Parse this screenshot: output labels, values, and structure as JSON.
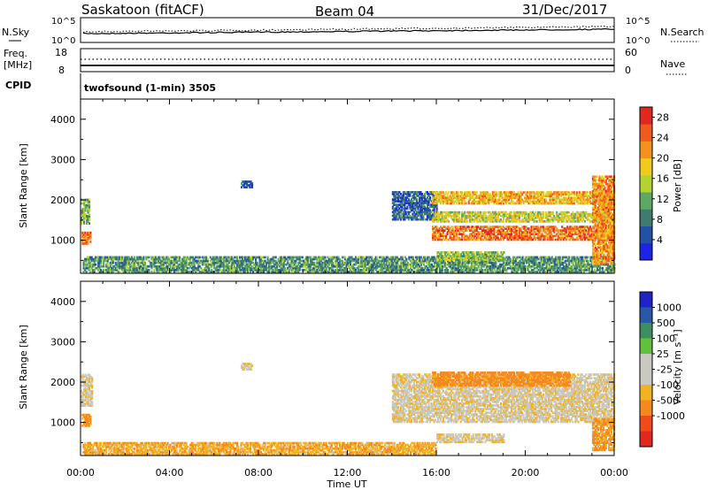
{
  "header": {
    "title": "Saskatoon (fitACF)",
    "beam": "Beam 04",
    "date": "31/Dec/2017"
  },
  "noise_panel": {
    "left_label": "N.Sky",
    "right_label": "N.Search",
    "left_ticks": [
      "10^5",
      "10^0"
    ],
    "right_ticks": [
      "10^5",
      "10^0"
    ]
  },
  "freq_panel": {
    "left_label_line1": "Freq.",
    "left_label_line2": "[MHz]",
    "right_label": "Nave",
    "left_ticks": [
      "18",
      "8"
    ],
    "right_ticks": [
      "60",
      "0"
    ]
  },
  "cpid": {
    "label": "CPID",
    "value": "twofsound (1-min) 3505"
  },
  "colors": {
    "power_scale": [
      "#1e24e6",
      "#2351a4",
      "#3f7b6e",
      "#5fa863",
      "#b3d42f",
      "#f2ca1e",
      "#f5921e",
      "#f15a1c",
      "#e0281f"
    ],
    "velocity_scale": [
      "#e0281f",
      "#f24a1a",
      "#f5891e",
      "#f2b323",
      "#c9c9c0",
      "#c9c9c0",
      "#62c13c",
      "#3c8f61",
      "#2c56a7",
      "#1e24c8"
    ]
  },
  "chart_data": [
    {
      "type": "heatmap",
      "title": "Power",
      "xlabel": "Time UT",
      "ylabel": "Slant Range [km]",
      "x_ticks": [
        "00:00",
        "04:00",
        "08:00",
        "12:00",
        "16:00",
        "20:00",
        "00:00"
      ],
      "y_ticks": [
        "1000",
        "2000",
        "3000",
        "4000"
      ],
      "ylim": [
        180,
        4500
      ],
      "colorbar_label": "Power [dB]",
      "colorbar_ticks": [
        "4",
        "8",
        "12",
        "16",
        "20",
        "24",
        "28"
      ],
      "colorbar_range": [
        0,
        30
      ],
      "regions": [
        {
          "t": [
            0.0,
            0.4
          ],
          "r": [
            1400,
            2000
          ],
          "value": 12
        },
        {
          "t": [
            0.05,
            0.45
          ],
          "r": [
            900,
            1200
          ],
          "value": 24
        },
        {
          "t": [
            0.1,
            24.0
          ],
          "r": [
            200,
            600
          ],
          "value": 10
        },
        {
          "t": [
            7.2,
            7.7
          ],
          "r": [
            2300,
            2450
          ],
          "value": 6
        },
        {
          "t": [
            14.0,
            16.0
          ],
          "r": [
            1500,
            2200
          ],
          "value": 6
        },
        {
          "t": [
            15.8,
            23.8
          ],
          "r": [
            1900,
            2200
          ],
          "value": 20
        },
        {
          "t": [
            15.8,
            23.8
          ],
          "r": [
            1450,
            1700
          ],
          "value": 16
        },
        {
          "t": [
            15.8,
            24.0
          ],
          "r": [
            1000,
            1350
          ],
          "value": 24
        },
        {
          "t": [
            16.0,
            19.0
          ],
          "r": [
            500,
            700
          ],
          "value": 14
        },
        {
          "t": [
            23.0,
            24.0
          ],
          "r": [
            400,
            2600
          ],
          "value": 22
        }
      ]
    },
    {
      "type": "heatmap",
      "title": "Velocity",
      "xlabel": "Time UT",
      "ylabel": "Slant Range [km]",
      "x_ticks": [
        "00:00",
        "04:00",
        "08:00",
        "12:00",
        "16:00",
        "20:00",
        "00:00"
      ],
      "y_ticks": [
        "1000",
        "2000",
        "3000",
        "4000"
      ],
      "ylim": [
        180,
        4500
      ],
      "colorbar_label": "Velocity [m s⁻¹]",
      "colorbar_ticks": [
        "1000",
        "500",
        "100",
        "25",
        "-25",
        "-100",
        "-500",
        "-1000"
      ],
      "regions": [
        {
          "t": [
            0.0,
            0.5
          ],
          "r": [
            1400,
            2200
          ],
          "value": 0
        },
        {
          "t": [
            0.05,
            0.45
          ],
          "r": [
            900,
            1200
          ],
          "value": -150
        },
        {
          "t": [
            0.1,
            16.0
          ],
          "r": [
            200,
            500
          ],
          "value": -80
        },
        {
          "t": [
            7.2,
            7.7
          ],
          "r": [
            2300,
            2450
          ],
          "value": 0
        },
        {
          "t": [
            14.0,
            24.0
          ],
          "r": [
            1000,
            2200
          ],
          "value": 0
        },
        {
          "t": [
            15.8,
            22.0
          ],
          "r": [
            1900,
            2250
          ],
          "value": -150
        },
        {
          "t": [
            16.0,
            19.0
          ],
          "r": [
            500,
            700
          ],
          "value": 0
        },
        {
          "t": [
            23.0,
            24.0
          ],
          "r": [
            300,
            1100
          ],
          "value": -120
        }
      ]
    }
  ]
}
